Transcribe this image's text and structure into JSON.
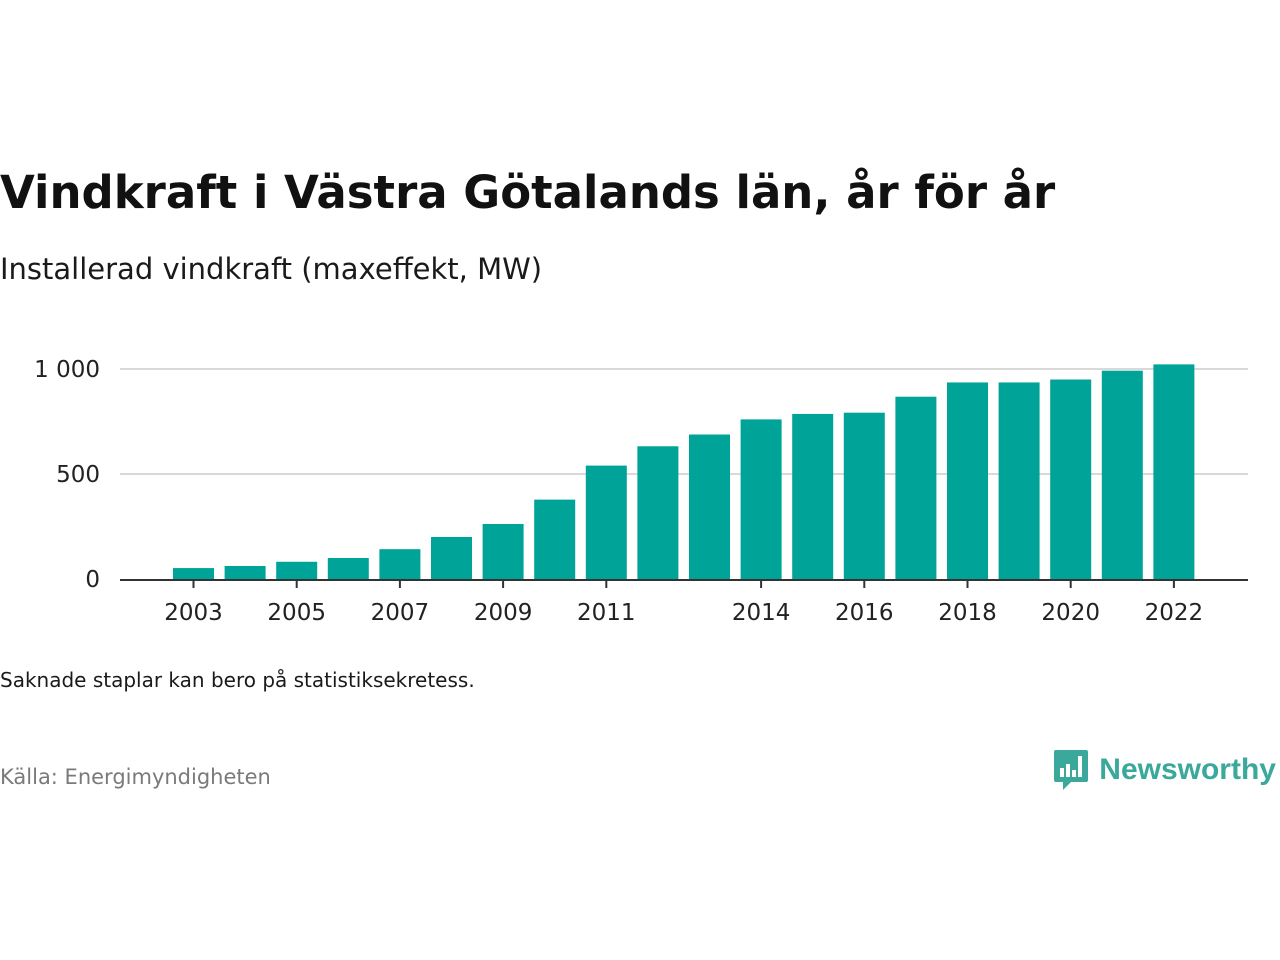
{
  "header": {
    "title": "Vindkraft i Västra Götalands län, år för år",
    "subtitle": "Installerad vindkraft (maxeffekt, MW)"
  },
  "footer": {
    "note": "Saknade staplar kan bero på statistiksekretess.",
    "source": "Källa: Energimyndigheten",
    "brand": "Newsworthy"
  },
  "colors": {
    "bar": "#00a398",
    "grid": "#d9d9d9",
    "axis": "#333333",
    "brand": "#3aa89a"
  },
  "chart_data": {
    "type": "bar",
    "title": "Vindkraft i Västra Götalands län, år för år",
    "subtitle": "Installerad vindkraft (maxeffekt, MW)",
    "categories": [
      2003,
      2004,
      2005,
      2006,
      2007,
      2008,
      2009,
      2010,
      2011,
      2012,
      2013,
      2014,
      2015,
      2016,
      2017,
      2018,
      2019,
      2020,
      2021,
      2022
    ],
    "values": [
      52,
      62,
      82,
      100,
      142,
      200,
      262,
      378,
      540,
      632,
      688,
      760,
      786,
      792,
      868,
      936,
      936,
      950,
      992,
      1022
    ],
    "x_tick_labels": [
      "2003",
      "2005",
      "2007",
      "2009",
      "2011",
      "2014",
      "2016",
      "2018",
      "2020",
      "2022"
    ],
    "y_ticks": [
      0,
      500,
      1000
    ],
    "y_tick_labels": [
      "0",
      "500",
      "1 000"
    ],
    "ylim": [
      0,
      1050
    ],
    "grid": true,
    "legend": "none"
  }
}
